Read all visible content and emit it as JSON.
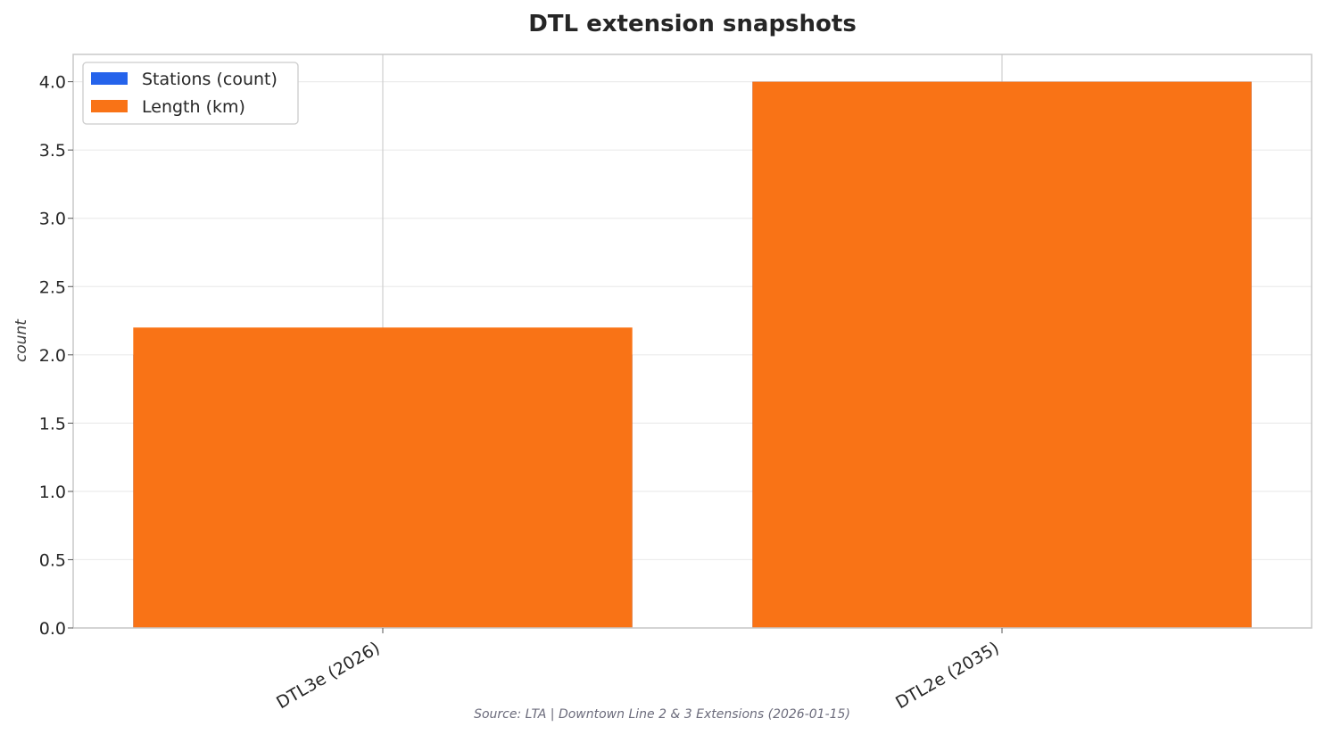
{
  "chart_data": {
    "type": "bar",
    "title": "DTL extension snapshots",
    "ylabel": "count",
    "xlabel": "",
    "categories": [
      "DTL3e (2026)",
      "DTL2e (2035)"
    ],
    "series": [
      {
        "name": "Stations (count)",
        "color": "#2563eb",
        "values": [
          2,
          4
        ]
      },
      {
        "name": "Length (km)",
        "color": "#f97316",
        "values": [
          2.2,
          4.0
        ]
      }
    ],
    "ylim": [
      0,
      4.2
    ],
    "yticks": [
      "0.0",
      "0.5",
      "1.0",
      "1.5",
      "2.0",
      "2.5",
      "3.0",
      "3.5",
      "4.0"
    ],
    "grid": true,
    "legend_position": "top-left",
    "source": "Source: LTA | Downtown Line 2 & 3 Extensions (2026-01-15)"
  }
}
